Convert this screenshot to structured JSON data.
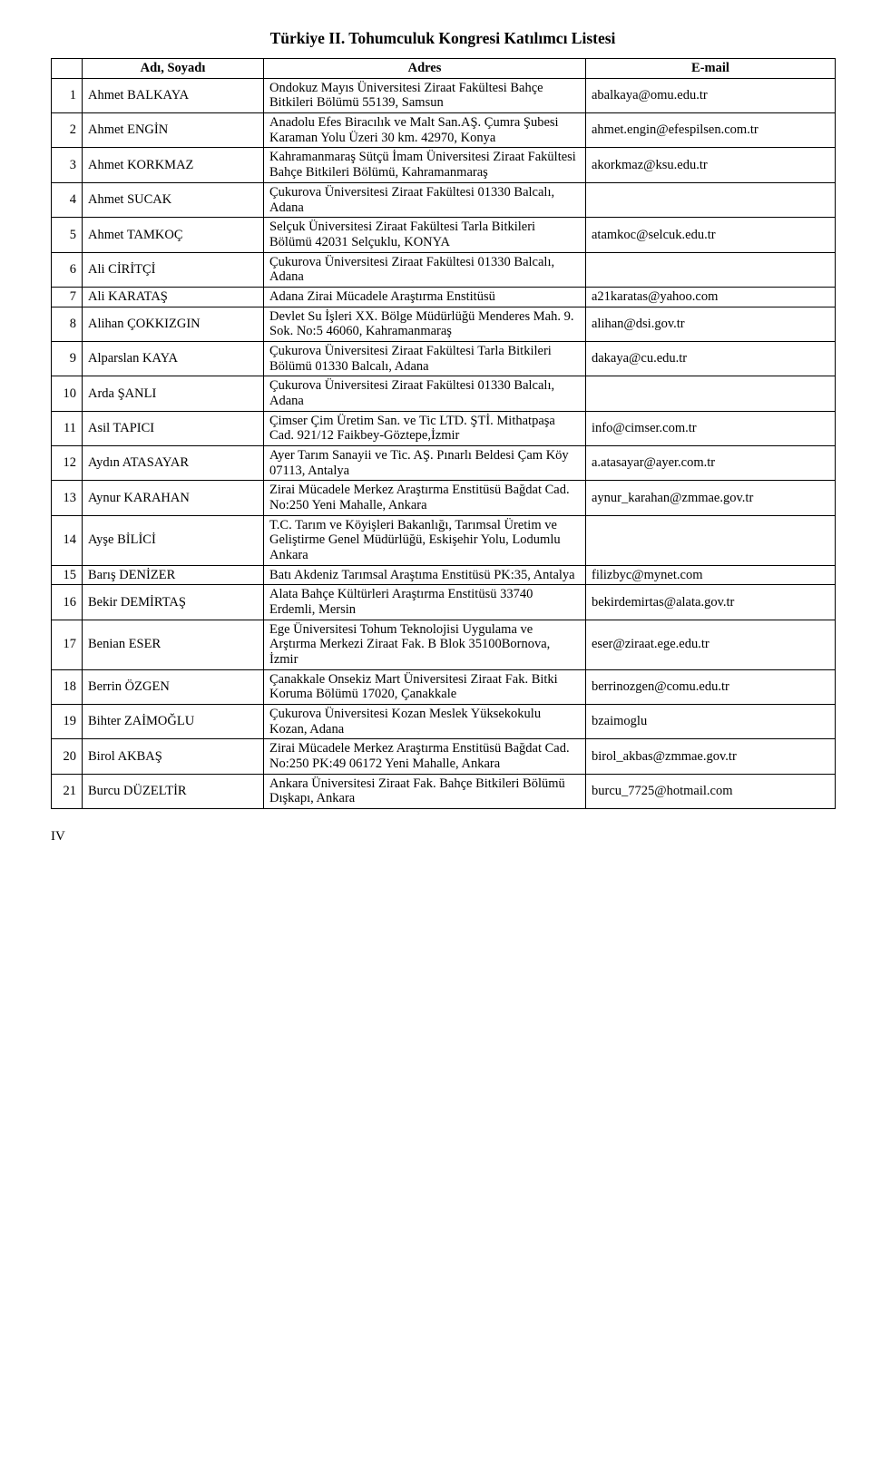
{
  "title": "Türkiye II. Tohumculuk Kongresi Katılımcı Listesi",
  "headers": {
    "name": "Adı, Soyadı",
    "addr": "Adres",
    "mail": "E-mail"
  },
  "footer": "IV",
  "rows": [
    {
      "n": "1",
      "name": "Ahmet BALKAYA",
      "addr": "Ondokuz Mayıs Üniversitesi Ziraat Fakültesi Bahçe Bitkileri Bölümü 55139, Samsun",
      "mail": "abalkaya@omu.edu.tr"
    },
    {
      "n": "2",
      "name": "Ahmet ENGİN",
      "addr": "Anadolu Efes Biracılık ve Malt San.AŞ. Çumra Şubesi Karaman Yolu Üzeri 30 km. 42970, Konya",
      "mail": "ahmet.engin@efespilsen.com.tr"
    },
    {
      "n": "3",
      "name": "Ahmet KORKMAZ",
      "addr": "Kahramanmaraş Sütçü İmam Üniversitesi Ziraat Fakültesi Bahçe Bitkileri Bölümü, Kahramanmaraş",
      "mail": "akorkmaz@ksu.edu.tr"
    },
    {
      "n": "4",
      "name": "Ahmet SUCAK",
      "addr": "Çukurova Üniversitesi Ziraat Fakültesi 01330 Balcalı, Adana",
      "mail": ""
    },
    {
      "n": "5",
      "name": "Ahmet TAMKOÇ",
      "addr": "Selçuk Üniversitesi Ziraat Fakültesi Tarla Bitkileri Bölümü 42031 Selçuklu, KONYA",
      "mail": "atamkoc@selcuk.edu.tr"
    },
    {
      "n": "6",
      "name": "Ali CİRİTÇİ",
      "addr": "Çukurova Üniversitesi Ziraat Fakültesi 01330 Balcalı, Adana",
      "mail": ""
    },
    {
      "n": "7",
      "name": "Ali KARATAŞ",
      "addr": "Adana Zirai Mücadele Araştırma Enstitüsü",
      "mail": "a21karatas@yahoo.com"
    },
    {
      "n": "8",
      "name": "Alihan ÇOKKIZGIN",
      "addr": "Devlet Su İşleri XX. Bölge Müdürlüğü Menderes Mah. 9. Sok. No:5 46060, Kahramanmaraş",
      "mail": "alihan@dsi.gov.tr"
    },
    {
      "n": "9",
      "name": "Alparslan KAYA",
      "addr": "Çukurova Üniversitesi Ziraat Fakültesi Tarla Bitkileri Bölümü 01330 Balcalı, Adana",
      "mail": "dakaya@cu.edu.tr"
    },
    {
      "n": "10",
      "name": "Arda ŞANLI",
      "addr": "Çukurova Üniversitesi Ziraat Fakültesi 01330 Balcalı, Adana",
      "mail": ""
    },
    {
      "n": "11",
      "name": "Asil TAPICI",
      "addr": "Çimser Çim Üretim San. ve Tic LTD. ŞTİ. Mithatpaşa Cad. 921/12 Faikbey-Göztepe,İzmir",
      "mail": "info@cimser.com.tr"
    },
    {
      "n": "12",
      "name": "Aydın ATASAYAR",
      "addr": "Ayer Tarım Sanayii ve Tic. AŞ. Pınarlı Beldesi Çam Köy 07113, Antalya",
      "mail": "a.atasayar@ayer.com.tr"
    },
    {
      "n": "13",
      "name": "Aynur KARAHAN",
      "addr": "Zirai Mücadele Merkez Araştırma Enstitüsü Bağdat Cad. No:250 Yeni Mahalle, Ankara",
      "mail": "aynur_karahan@zmmae.gov.tr"
    },
    {
      "n": "14",
      "name": "Ayşe BİLİCİ",
      "addr": "T.C. Tarım ve Köyişleri Bakanlığı, Tarımsal Üretim ve Geliştirme Genel Müdürlüğü, Eskişehir Yolu, Lodumlu Ankara",
      "mail": ""
    },
    {
      "n": "15",
      "name": "Barış DENİZER",
      "addr": "Batı Akdeniz Tarımsal Araştıma Enstitüsü PK:35, Antalya",
      "mail": "filizbyc@mynet.com"
    },
    {
      "n": "16",
      "name": "Bekir DEMİRTAŞ",
      "addr": "Alata Bahçe Kültürleri Araştırma Enstitüsü 33740 Erdemli, Mersin",
      "mail": "bekirdemirtas@alata.gov.tr"
    },
    {
      "n": "17",
      "name": "Benian ESER",
      "addr": "Ege Üniversitesi Tohum Teknolojisi Uygulama ve Arştırma Merkezi Ziraat Fak. B Blok 35100Bornova, İzmir",
      "mail": "eser@ziraat.ege.edu.tr"
    },
    {
      "n": "18",
      "name": "Berrin ÖZGEN",
      "addr": "Çanakkale Onsekiz Mart Üniversitesi Ziraat Fak. Bitki Koruma Bölümü 17020, Çanakkale",
      "mail": "berrinozgen@comu.edu.tr"
    },
    {
      "n": "19",
      "name": "Bihter ZAİMOĞLU",
      "addr": "Çukurova Üniversitesi Kozan Meslek Yüksekokulu Kozan, Adana",
      "mail": "bzaimoglu"
    },
    {
      "n": "20",
      "name": "Birol AKBAŞ",
      "addr": "Zirai Mücadele Merkez Araştırma Enstitüsü Bağdat Cad. No:250 PK:49 06172 Yeni Mahalle, Ankara",
      "mail": "birol_akbas@zmmae.gov.tr"
    },
    {
      "n": "21",
      "name": "Burcu DÜZELTİR",
      "addr": "Ankara Üniversitesi Ziraat Fak. Bahçe Bitkileri Bölümü Dışkapı, Ankara",
      "mail": "burcu_7725@hotmail.com"
    }
  ]
}
